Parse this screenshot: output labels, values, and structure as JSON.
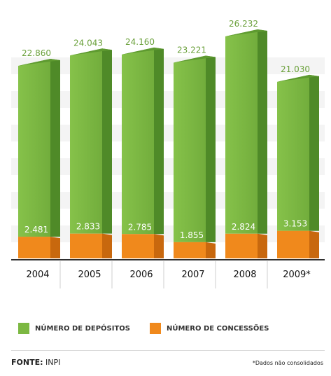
{
  "chart_data": {
    "type": "bar",
    "categories": [
      "2004",
      "2005",
      "2006",
      "2007",
      "2008",
      "2009*"
    ],
    "series": [
      {
        "name": "NÚMERO DE DEPÓSITOS",
        "values": [
          22860,
          24043,
          24160,
          23221,
          26232,
          21030
        ],
        "labels": [
          "22.860",
          "24.043",
          "24.160",
          "23.221",
          "26.232",
          "21.030"
        ]
      },
      {
        "name": "NÚMERO DE CONCESSÕES",
        "values": [
          2481,
          2833,
          2785,
          1855,
          2824,
          3153
        ],
        "labels": [
          "2.481",
          "2.833",
          "2.785",
          "1.855",
          "2.824",
          "3.153"
        ]
      }
    ],
    "colors": {
      "depositos": "#7cb842",
      "depositos_label": "#6aa03a",
      "concessoes": "#f0891c",
      "label_light": "#ffffff"
    },
    "ylim": [
      0,
      28000
    ],
    "grid": false,
    "legend_position": "bottom-left"
  },
  "legend": {
    "depositos": "NÚMERO DE DEPÓSITOS",
    "concessoes": "NÚMERO DE CONCESSÕES"
  },
  "footer": {
    "source_label": "FONTE:",
    "source_value": "INPI",
    "note": "*Dados não consolidados"
  }
}
